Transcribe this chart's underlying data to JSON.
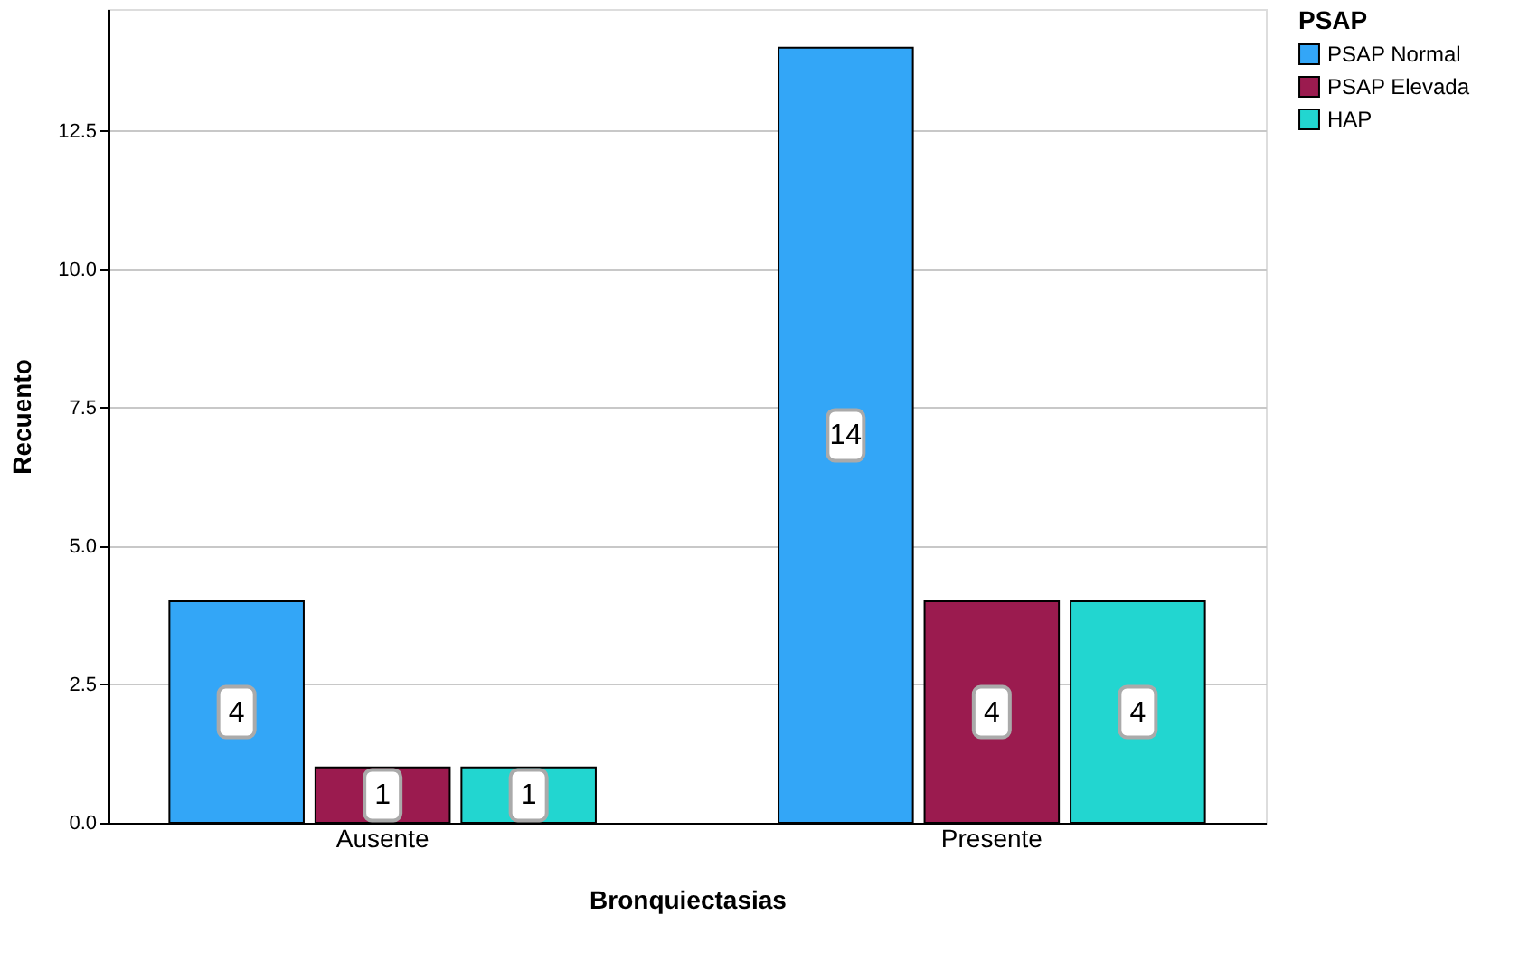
{
  "chart_data": {
    "type": "bar",
    "xlabel": "Bronquiectasias",
    "ylabel": "Recuento",
    "legend_title": "PSAP",
    "categories": [
      "Ausente",
      "Presente"
    ],
    "series": [
      {
        "name": "PSAP Normal",
        "color": "#33a6f7",
        "values": [
          4,
          14
        ]
      },
      {
        "name": "PSAP Elevada",
        "color": "#9b1b4f",
        "values": [
          1,
          4
        ]
      },
      {
        "name": "HAP",
        "color": "#22d6d0",
        "values": [
          1,
          4
        ]
      }
    ],
    "ylim": [
      0,
      14.7
    ],
    "yticks": [
      {
        "value": 0,
        "label": "0.0"
      },
      {
        "value": 2.5,
        "label": "2.5"
      },
      {
        "value": 5,
        "label": "5.0"
      },
      {
        "value": 7.5,
        "label": "7.5"
      },
      {
        "value": 10,
        "label": "10.0"
      },
      {
        "value": 12.5,
        "label": "12.5"
      }
    ],
    "grid": "y",
    "legend": "top right",
    "data_labels": true
  }
}
